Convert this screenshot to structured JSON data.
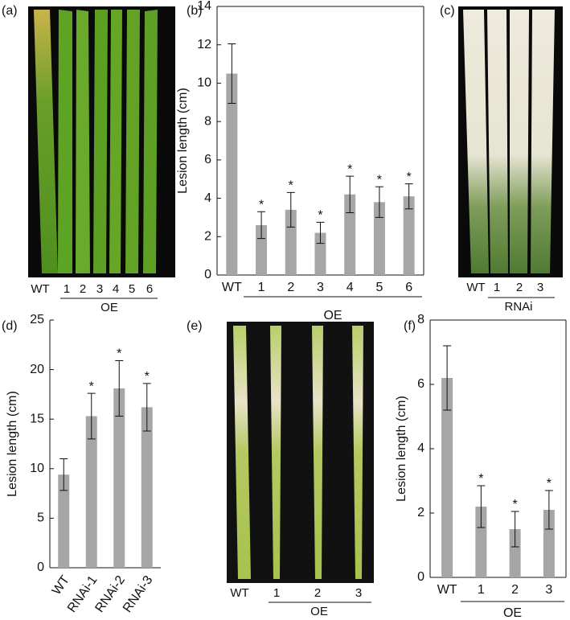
{
  "chart_data": [
    {
      "panel": "(b)",
      "type": "bar",
      "ylabel": "Lesion length (cm)",
      "categories": [
        "WT",
        "1",
        "2",
        "3",
        "4",
        "5",
        "6"
      ],
      "group_label": "OE",
      "values": [
        10.5,
        2.6,
        3.4,
        2.2,
        4.2,
        3.8,
        4.1
      ],
      "errors": [
        1.55,
        0.7,
        0.9,
        0.55,
        0.95,
        0.8,
        0.65
      ],
      "annotations": [
        null,
        "*",
        "*",
        "*",
        "*",
        "*",
        "*"
      ],
      "color": "#a6a6a6",
      "ylim": [
        0,
        14
      ],
      "yticks": [
        0,
        2,
        4,
        6,
        8,
        10,
        12,
        14
      ]
    },
    {
      "panel": "(d)",
      "type": "bar",
      "ylabel": "Lesion length (cm)",
      "categories": [
        "WT",
        "RNAi-1",
        "RNAi-2",
        "RNAi-3"
      ],
      "values": [
        9.4,
        15.3,
        18.1,
        16.2
      ],
      "errors": [
        1.6,
        2.3,
        2.8,
        2.4
      ],
      "annotations": [
        null,
        "*",
        "*",
        "*"
      ],
      "color": "#a6a6a6",
      "ylim": [
        0,
        25
      ],
      "yticks": [
        0,
        5,
        10,
        15,
        20,
        25
      ]
    },
    {
      "panel": "(f)",
      "type": "bar",
      "ylabel": "Lesion length (cm)",
      "categories": [
        "WT",
        "1",
        "2",
        "3"
      ],
      "group_label": "OE",
      "values": [
        6.2,
        2.2,
        1.5,
        2.1
      ],
      "errors": [
        1.0,
        0.65,
        0.55,
        0.6
      ],
      "annotations": [
        null,
        "*",
        "*",
        "*"
      ],
      "color": "#a6a6a6",
      "ylim": [
        0,
        8
      ],
      "yticks": [
        0,
        2,
        4,
        6,
        8
      ]
    }
  ],
  "photos": [
    {
      "panel": "(a)",
      "labels": [
        "WT",
        "1",
        "2",
        "3",
        "4",
        "5",
        "6"
      ],
      "group_label": "OE"
    },
    {
      "panel": "(c)",
      "labels": [
        "WT",
        "1",
        "2",
        "3"
      ],
      "group_label": "RNAi"
    },
    {
      "panel": "(e)",
      "labels": [
        "WT",
        "1",
        "2",
        "3"
      ],
      "group_label": "OE"
    }
  ]
}
